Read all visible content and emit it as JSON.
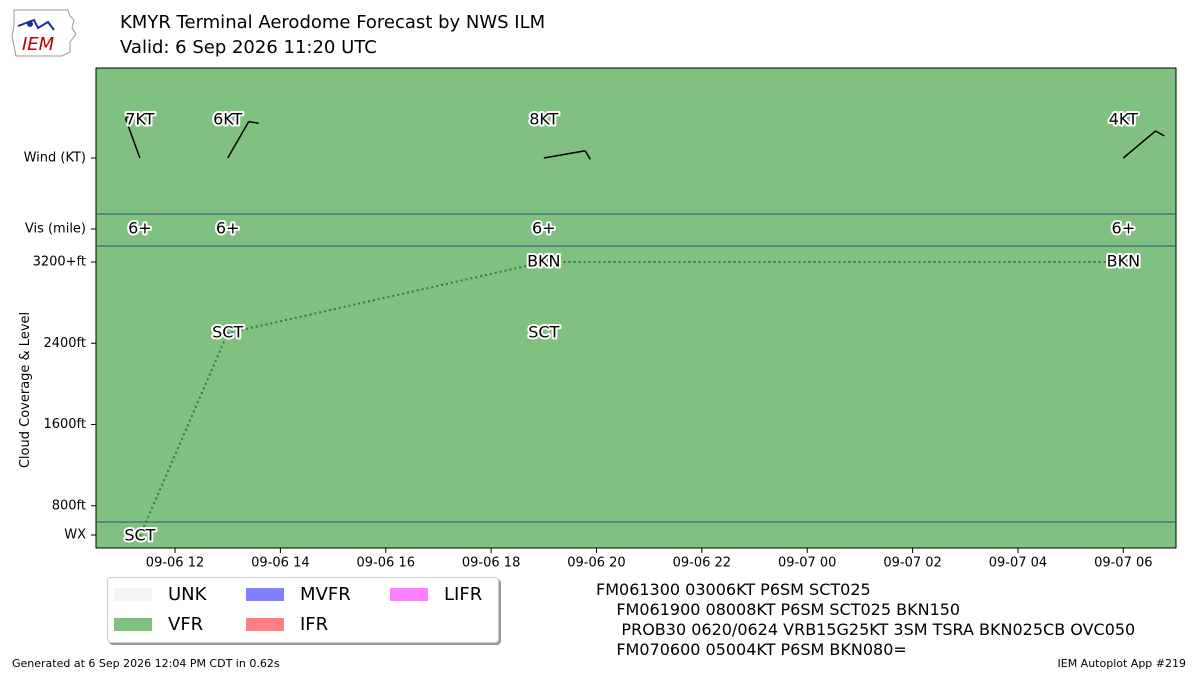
{
  "header": {
    "title": "KMYR Terminal Aerodome Forecast by NWS ILM",
    "valid": "Valid: 6 Sep 2026 11:20 UTC",
    "logo_text": "IEM"
  },
  "chart_data": {
    "type": "line",
    "ylabel": "Cloud Coverage & Level",
    "row_labels": {
      "wind": "Wind (KT)",
      "vis": "Vis (mile)",
      "wx": "WX"
    },
    "y_ticks": [
      {
        "label": "800ft",
        "value": 800
      },
      {
        "label": "1600ft",
        "value": 1600
      },
      {
        "label": "2400ft",
        "value": 2400
      },
      {
        "label": "3200+ft",
        "value": 3200
      }
    ],
    "ylim": [
      0,
      3200
    ],
    "xlim": [
      "2026-09-06T10:30",
      "2026-09-07T07:00"
    ],
    "x_ticks": [
      {
        "label": "09-06 12",
        "t": "2026-09-06T12:00"
      },
      {
        "label": "09-06 14",
        "t": "2026-09-06T14:00"
      },
      {
        "label": "09-06 16",
        "t": "2026-09-06T16:00"
      },
      {
        "label": "09-06 18",
        "t": "2026-09-06T18:00"
      },
      {
        "label": "09-06 20",
        "t": "2026-09-06T20:00"
      },
      {
        "label": "09-06 22",
        "t": "2026-09-06T22:00"
      },
      {
        "label": "09-07 00",
        "t": "2026-09-07T00:00"
      },
      {
        "label": "09-07 02",
        "t": "2026-09-07T02:00"
      },
      {
        "label": "09-07 04",
        "t": "2026-09-07T04:00"
      },
      {
        "label": "09-07 06",
        "t": "2026-09-07T06:00"
      }
    ],
    "category_color": "#80c080",
    "line_color": "#2e7d32",
    "periods": [
      {
        "t": "2026-09-06T11:20",
        "wind": {
          "label": "7KT",
          "dir": 340,
          "speed": 7
        },
        "vis": "6+",
        "clouds": [
          {
            "cover": "SCT",
            "level": 500
          }
        ]
      },
      {
        "t": "2026-09-06T13:00",
        "wind": {
          "label": "6KT",
          "dir": 30,
          "speed": 6
        },
        "vis": "6+",
        "clouds": [
          {
            "cover": "SCT",
            "level": 2500
          }
        ]
      },
      {
        "t": "2026-09-06T19:00",
        "wind": {
          "label": "8KT",
          "dir": 80,
          "speed": 8
        },
        "vis": "6+",
        "clouds": [
          {
            "cover": "SCT",
            "level": 2500
          },
          {
            "cover": "BKN",
            "level": 3200
          }
        ]
      },
      {
        "t": "2026-09-07T06:00",
        "wind": {
          "label": "4KT",
          "dir": 50,
          "speed": 4
        },
        "vis": "6+",
        "clouds": [
          {
            "cover": "BKN",
            "level": 3200
          }
        ]
      }
    ],
    "line_points": [
      {
        "t": "2026-09-06T11:20",
        "level": 500
      },
      {
        "t": "2026-09-06T13:00",
        "level": 2500
      },
      {
        "t": "2026-09-06T19:00",
        "level": 3200
      },
      {
        "t": "2026-09-07T06:00",
        "level": 3200
      }
    ],
    "legend": [
      {
        "label": "UNK",
        "color": "#f5f5f5"
      },
      {
        "label": "MVFR",
        "color": "#8080ff"
      },
      {
        "label": "LIFR",
        "color": "#ff80ff"
      },
      {
        "label": "VFR",
        "color": "#80c080"
      },
      {
        "label": "IFR",
        "color": "#ff8080"
      }
    ]
  },
  "taf": {
    "lines": [
      "FM061300 03006KT P6SM SCT025",
      "    FM061900 08008KT P6SM SCT025 BKN150",
      "     PROB30 0620/0624 VRB15G25KT 3SM TSRA BKN025CB OVC050",
      "    FM070600 05004KT P6SM BKN080="
    ]
  },
  "footer": {
    "generated": "Generated at 6 Sep 2026 12:04 PM CDT in 0.62s",
    "app": "IEM Autoplot App #219"
  }
}
